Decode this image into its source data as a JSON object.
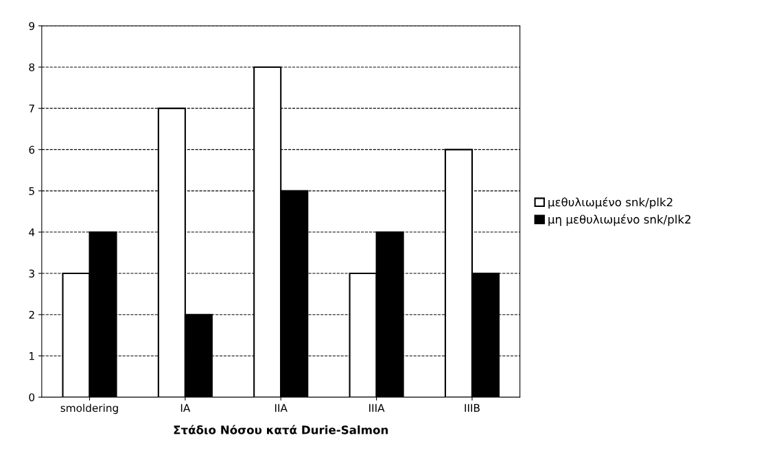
{
  "chart_data": {
    "type": "bar",
    "xlabel": "Στάδιο Νόσου κατά Durie-Salmon",
    "categories": [
      "smoldering",
      "IA",
      "IIA",
      "IIIA",
      "IIIB"
    ],
    "series": [
      {
        "name": "μεθυλιωμένο snk/plk2",
        "color": "#ffffff",
        "values": [
          3,
          7,
          8,
          3,
          6
        ]
      },
      {
        "name": "μη μεθυλιωμένο snk/plk2",
        "color": "#000000",
        "values": [
          4,
          2,
          5,
          4,
          3
        ]
      }
    ],
    "ylim": [
      0,
      9
    ],
    "yticks": [
      0,
      1,
      2,
      3,
      4,
      5,
      6,
      7,
      8,
      9
    ],
    "grid": "y",
    "legend": "right"
  }
}
